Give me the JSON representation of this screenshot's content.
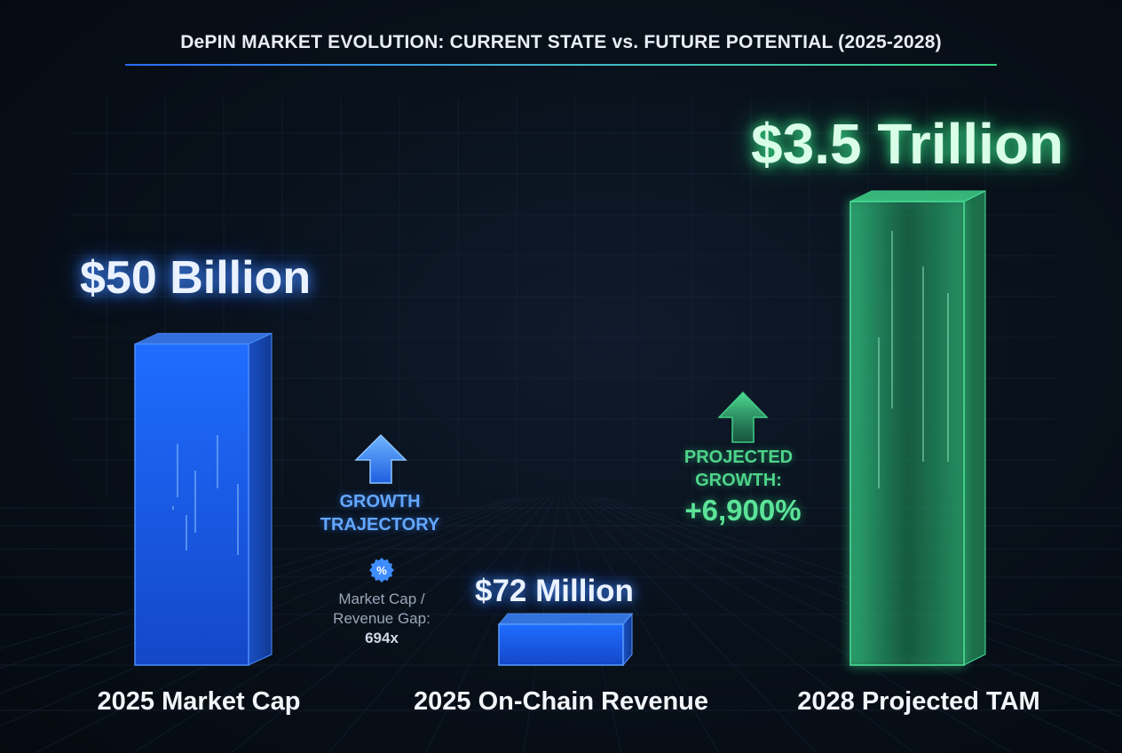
{
  "title": "DePIN MARKET EVOLUTION: CURRENT STATE vs. FUTURE POTENTIAL (2025-2028)",
  "chart_data": {
    "type": "bar",
    "title": "DePIN MARKET EVOLUTION: CURRENT STATE vs. FUTURE POTENTIAL (2025-2028)",
    "categories": [
      "2025 Market Cap",
      "2025 On-Chain Revenue",
      "2028 Projected TAM"
    ],
    "values": [
      50000000000,
      72000000,
      3500000000000
    ],
    "value_labels": [
      "$50 Billion",
      "$72 Million",
      "$3.5 Trillion"
    ],
    "colors": [
      "#1f6dff",
      "#1f6dff",
      "#36d98a"
    ]
  },
  "annotations": {
    "growth_trajectory": [
      "GROWTH",
      "TRAJECTORY"
    ],
    "gap_label_line1": "Market Cap /",
    "gap_label_line2": "Revenue Gap:",
    "gap_value": "694x",
    "gap_icon": "percent-badge-icon",
    "projected_line1": "PROJECTED",
    "projected_line2": "GROWTH:",
    "projected_value": "+6,900%"
  },
  "colors": {
    "blue_accent": "#1f6dff",
    "green_accent": "#36d98a",
    "background": "#081019"
  }
}
